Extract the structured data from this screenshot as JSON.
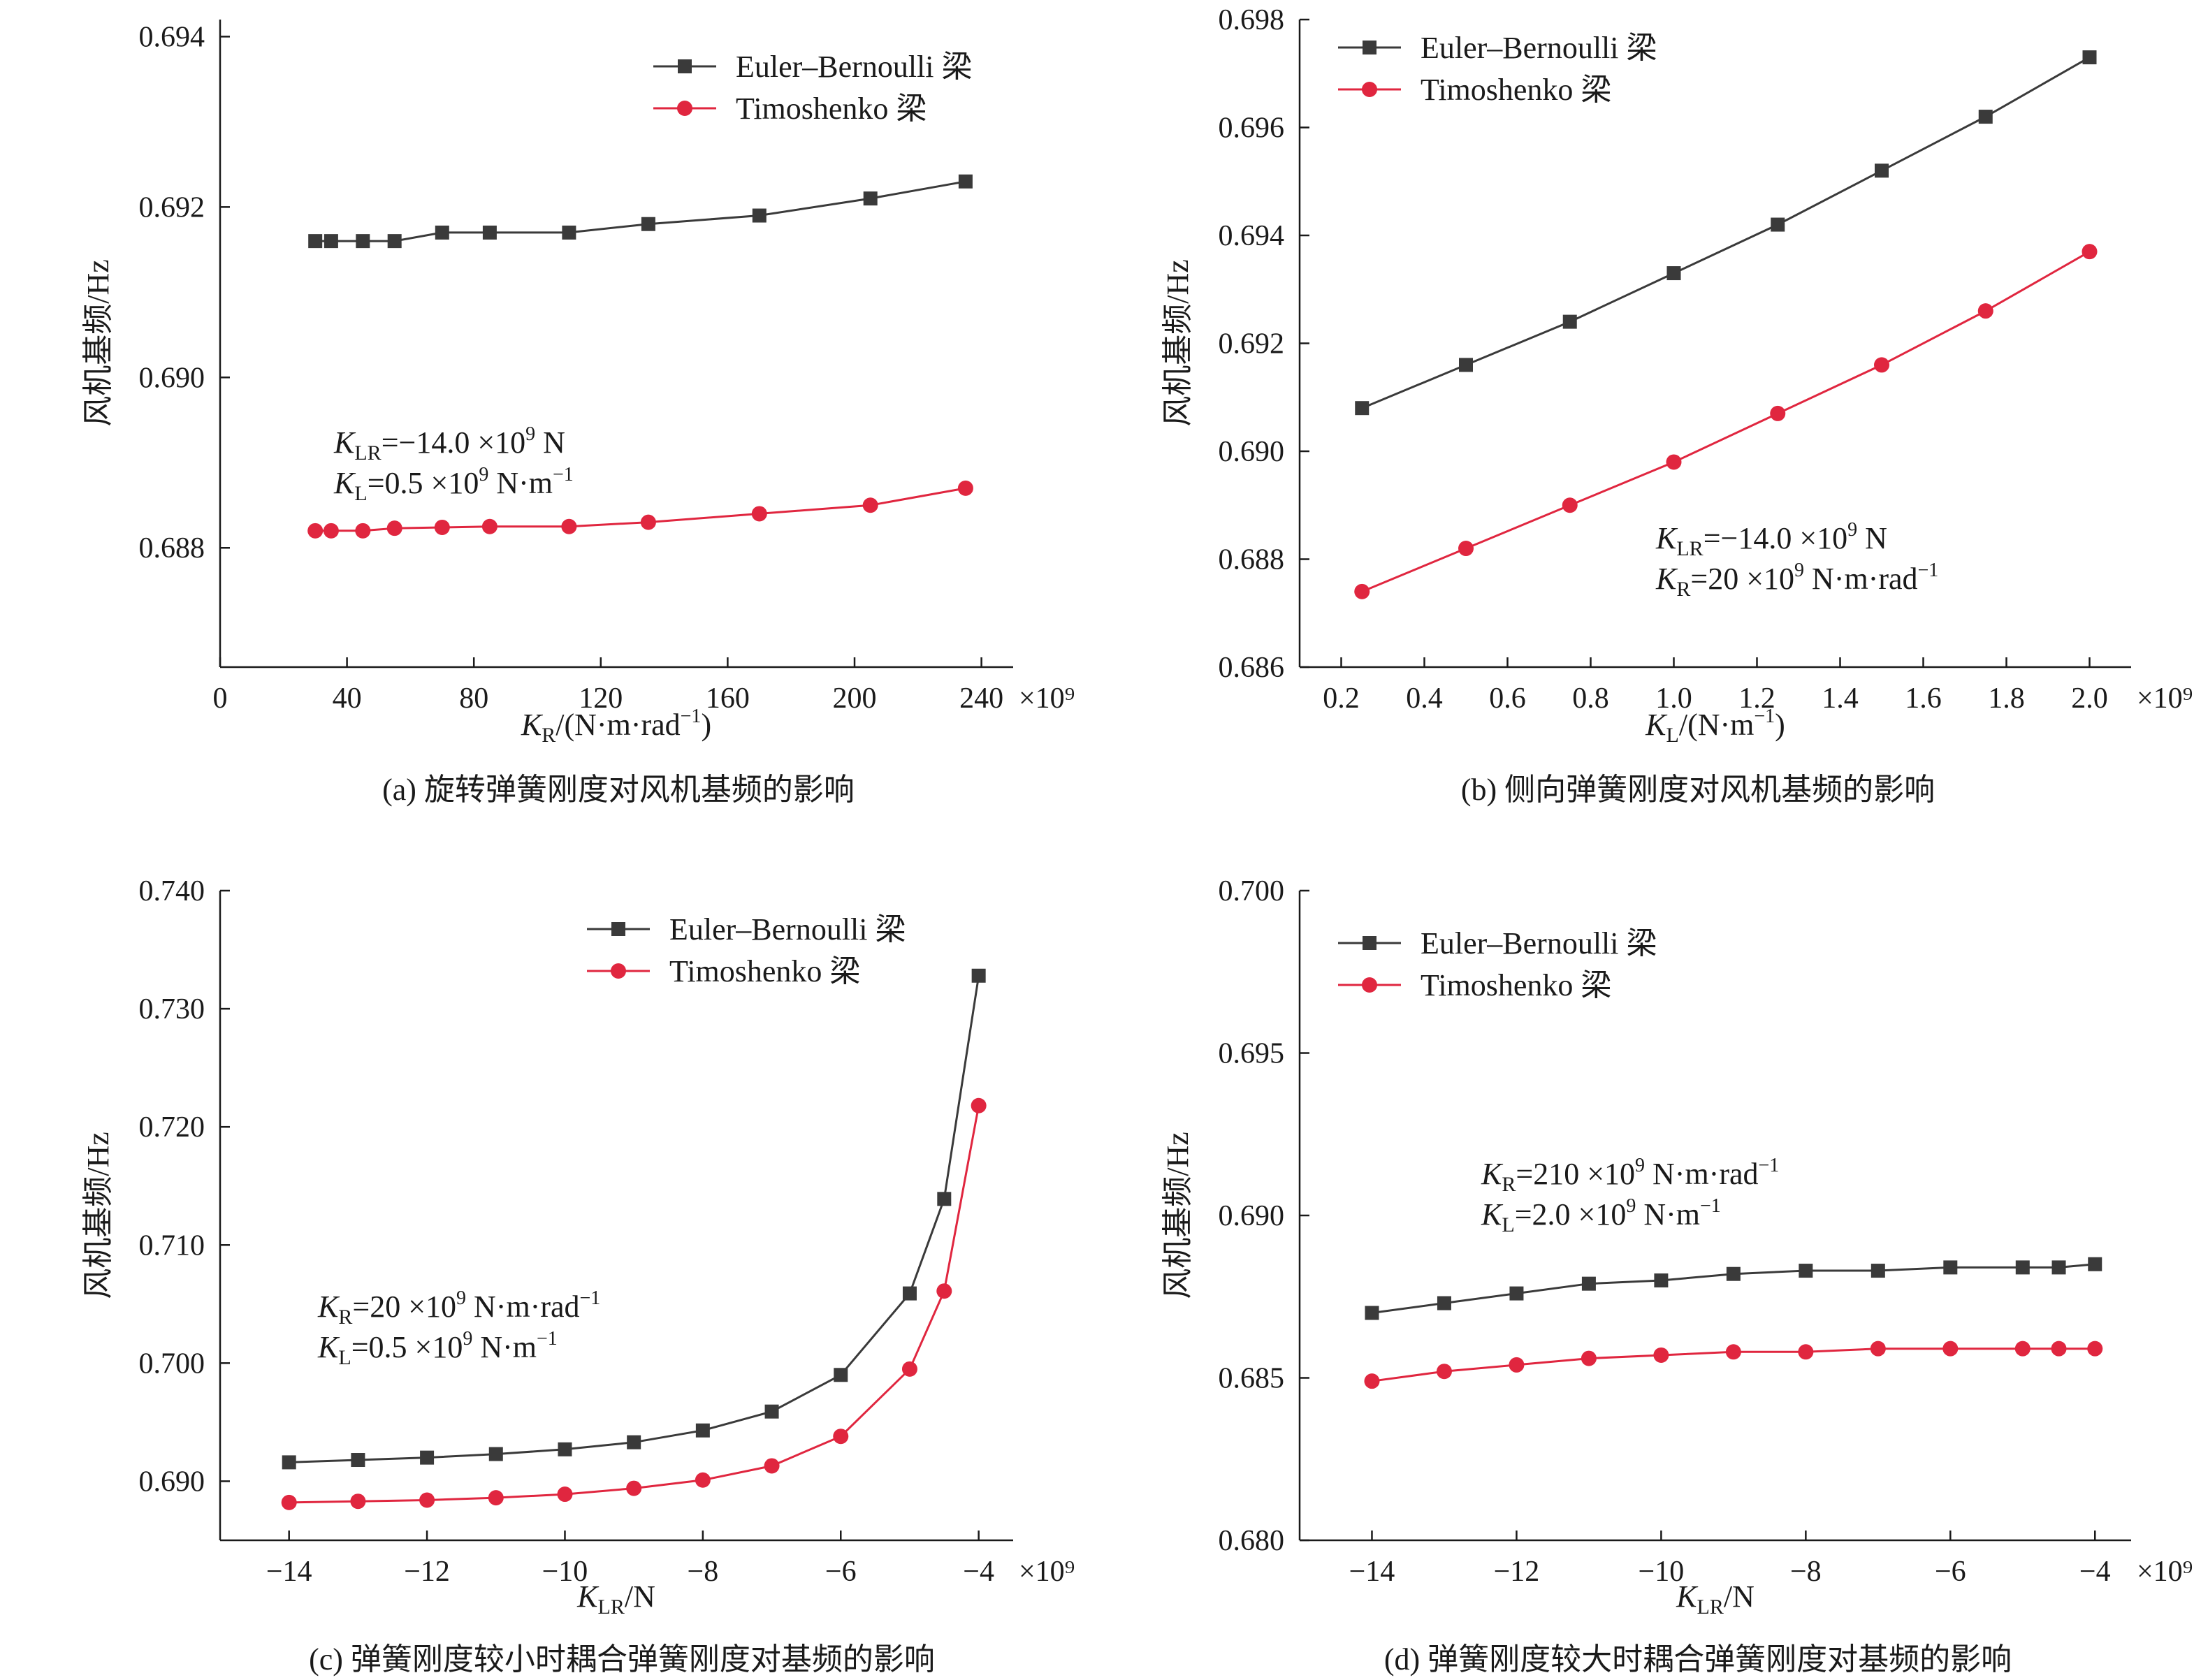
{
  "colors": {
    "euler": "#3a3a3a",
    "timoshenko": "#e0263f",
    "axis": "#1a1a1a"
  },
  "markers": {
    "euler": "square",
    "timoshenko": "circle"
  },
  "chart_data": [
    {
      "id": "a",
      "type": "line",
      "caption": "(a) 旋转弹簧刚度对风机基频的影响",
      "ylabel": "风机基频/Hz",
      "xlabel": {
        "sym": "K",
        "sub": "R",
        "unit": "/(N·m·rad",
        "sup": "−1",
        "tail": ")"
      },
      "x_multiplier": "×10⁹",
      "xlim": [
        0,
        250
      ],
      "ylim": [
        0.6866,
        0.6942
      ],
      "xticks": [
        0,
        40,
        80,
        120,
        160,
        200,
        240
      ],
      "xtick_labels": [
        "0",
        "40",
        "80",
        "120",
        "160",
        "200",
        "240"
      ],
      "yticks": [
        0.688,
        0.69,
        0.692,
        0.694
      ],
      "ytick_labels": [
        "0.688",
        "0.690",
        "0.692",
        "0.694"
      ],
      "legend_position": "top-right",
      "annotation_lines": [
        {
          "sym": "K",
          "sub": "LR",
          "text": "=−14.0 ×10",
          "sup": "9",
          "tail": " N"
        },
        {
          "sym": "K",
          "sub": "L",
          "text": "=0.5 ×10",
          "sup": "9",
          "tail": " N·m",
          "sup2": "−1"
        }
      ],
      "series": [
        {
          "name": "Euler–Bernoulli 梁",
          "key": "euler",
          "x": [
            30,
            35,
            45,
            55,
            70,
            85,
            110,
            135,
            170,
            205,
            235
          ],
          "y": [
            0.6916,
            0.6916,
            0.6916,
            0.6916,
            0.6917,
            0.6917,
            0.6917,
            0.6918,
            0.6919,
            0.6921,
            0.6923
          ]
        },
        {
          "name": "Timoshenko 梁",
          "key": "timoshenko",
          "x": [
            30,
            35,
            45,
            55,
            70,
            85,
            110,
            135,
            170,
            205,
            235
          ],
          "y": [
            0.6882,
            0.6882,
            0.6882,
            0.68823,
            0.68824,
            0.68825,
            0.68825,
            0.6883,
            0.6884,
            0.6885,
            0.6887
          ]
        }
      ]
    },
    {
      "id": "b",
      "type": "line",
      "caption": "(b) 侧向弹簧刚度对风机基频的影响",
      "ylabel": "风机基频/Hz",
      "xlabel": {
        "sym": "K",
        "sub": "L",
        "unit": "/(N·m",
        "sup": "−1",
        "tail": ")"
      },
      "x_multiplier": "×10⁹",
      "xlim": [
        0.1,
        2.1
      ],
      "ylim": [
        0.686,
        0.698
      ],
      "xticks": [
        0.2,
        0.4,
        0.6,
        0.8,
        1.0,
        1.2,
        1.4,
        1.6,
        1.8,
        2.0
      ],
      "xtick_labels": [
        "0.2",
        "0.4",
        "0.6",
        "0.8",
        "1.0",
        "1.2",
        "1.4",
        "1.6",
        "1.8",
        "2.0"
      ],
      "yticks": [
        0.686,
        0.688,
        0.69,
        0.692,
        0.694,
        0.696,
        0.698
      ],
      "ytick_labels": [
        "0.686",
        "0.688",
        "0.690",
        "0.692",
        "0.694",
        "0.696",
        "0.698"
      ],
      "legend_position": "top-left",
      "annotation_lines": [
        {
          "sym": "K",
          "sub": "LR",
          "text": "=−14.0 ×10",
          "sup": "9",
          "tail": " N"
        },
        {
          "sym": "K",
          "sub": "R",
          "text": "=20 ×10",
          "sup": "9",
          "tail": " N·m·rad",
          "sup2": "−1"
        }
      ],
      "series": [
        {
          "name": "Euler–Bernoulli 梁",
          "key": "euler",
          "x": [
            0.25,
            0.5,
            0.75,
            1.0,
            1.25,
            1.5,
            1.75,
            2.0
          ],
          "y": [
            0.6908,
            0.6916,
            0.6924,
            0.6933,
            0.6942,
            0.6952,
            0.6962,
            0.6973
          ]
        },
        {
          "name": "Timoshenko 梁",
          "key": "timoshenko",
          "x": [
            0.25,
            0.5,
            0.75,
            1.0,
            1.25,
            1.5,
            1.75,
            2.0
          ],
          "y": [
            0.6874,
            0.6882,
            0.689,
            0.6898,
            0.6907,
            0.6916,
            0.6926,
            0.6937
          ]
        }
      ]
    },
    {
      "id": "c",
      "type": "line",
      "caption": "(c) 弹簧刚度较小时耦合弹簧刚度对基频的影响",
      "ylabel": "风机基频/Hz",
      "xlabel": {
        "sym": "K",
        "sub": "LR",
        "unit": "/N",
        "sup": "",
        "tail": ""
      },
      "x_multiplier": "×10⁹",
      "xlim": [
        -15,
        -3.5
      ],
      "ylim": [
        0.685,
        0.74
      ],
      "xticks": [
        -14,
        -12,
        -10,
        -8,
        -6,
        -4
      ],
      "xtick_labels": [
        "−14",
        "−12",
        "−10",
        "−8",
        "−6",
        "−4"
      ],
      "yticks": [
        0.69,
        0.7,
        0.71,
        0.72,
        0.73,
        0.74
      ],
      "ytick_labels": [
        "0.690",
        "0.700",
        "0.710",
        "0.720",
        "0.730",
        "0.740"
      ],
      "legend_position": "top-right",
      "annotation_lines": [
        {
          "sym": "K",
          "sub": "R",
          "text": "=20 ×10",
          "sup": "9",
          "tail": " N·m·rad",
          "sup2": "−1"
        },
        {
          "sym": "K",
          "sub": "L",
          "text": "=0.5 ×10",
          "sup": "9",
          "tail": " N·m",
          "sup2": "−1"
        }
      ],
      "series": [
        {
          "name": "Euler–Bernoulli 梁",
          "key": "euler",
          "x": [
            -14,
            -13,
            -12,
            -11,
            -10,
            -9,
            -8,
            -7,
            -6,
            -5,
            -4.5,
            -4
          ],
          "y": [
            0.6916,
            0.6918,
            0.692,
            0.6923,
            0.6927,
            0.6933,
            0.6943,
            0.6959,
            0.699,
            0.7059,
            0.7139,
            0.7328
          ]
        },
        {
          "name": "Timoshenko 梁",
          "key": "timoshenko",
          "x": [
            -14,
            -13,
            -12,
            -11,
            -10,
            -9,
            -8,
            -7,
            -6,
            -5,
            -4.5,
            -4
          ],
          "y": [
            0.6882,
            0.6883,
            0.6884,
            0.6886,
            0.6889,
            0.6894,
            0.6901,
            0.6913,
            0.6938,
            0.6995,
            0.7061,
            0.7218
          ]
        }
      ]
    },
    {
      "id": "d",
      "type": "line",
      "caption": "(d) 弹簧刚度较大时耦合弹簧刚度对基频的影响",
      "ylabel": "风机基频/Hz",
      "xlabel": {
        "sym": "K",
        "sub": "LR",
        "unit": "/N",
        "sup": "",
        "tail": ""
      },
      "x_multiplier": "×10⁹",
      "xlim": [
        -15,
        -3.5
      ],
      "ylim": [
        0.68,
        0.7
      ],
      "xticks": [
        -14,
        -12,
        -10,
        -8,
        -6,
        -4
      ],
      "xtick_labels": [
        "−14",
        "−12",
        "−10",
        "−8",
        "−6",
        "−4"
      ],
      "yticks": [
        0.68,
        0.685,
        0.69,
        0.695,
        0.7
      ],
      "ytick_labels": [
        "0.680",
        "0.685",
        "0.690",
        "0.695",
        "0.700"
      ],
      "legend_position": "top-left",
      "annotation_lines": [
        {
          "sym": "K",
          "sub": "R",
          "text": "=210 ×10",
          "sup": "9",
          "tail": " N·m·rad",
          "sup2": "−1"
        },
        {
          "sym": "K",
          "sub": "L",
          "text": "=2.0 ×10",
          "sup": "9",
          "tail": " N·m",
          "sup2": "−1"
        }
      ],
      "series": [
        {
          "name": "Euler–Bernoulli 梁",
          "key": "euler",
          "x": [
            -14,
            -13,
            -12,
            -11,
            -10,
            -9,
            -8,
            -7,
            -6,
            -5,
            -4.5,
            -4
          ],
          "y": [
            0.687,
            0.6873,
            0.6876,
            0.6879,
            0.688,
            0.6882,
            0.6883,
            0.6883,
            0.6884,
            0.6884,
            0.6884,
            0.6885
          ]
        },
        {
          "name": "Timoshenko 梁",
          "key": "timoshenko",
          "x": [
            -14,
            -13,
            -12,
            -11,
            -10,
            -9,
            -8,
            -7,
            -6,
            -5,
            -4.5,
            -4
          ],
          "y": [
            0.6849,
            0.6852,
            0.6854,
            0.6856,
            0.6857,
            0.6858,
            0.6858,
            0.6859,
            0.6859,
            0.6859,
            0.6859,
            0.6859
          ]
        }
      ]
    }
  ]
}
